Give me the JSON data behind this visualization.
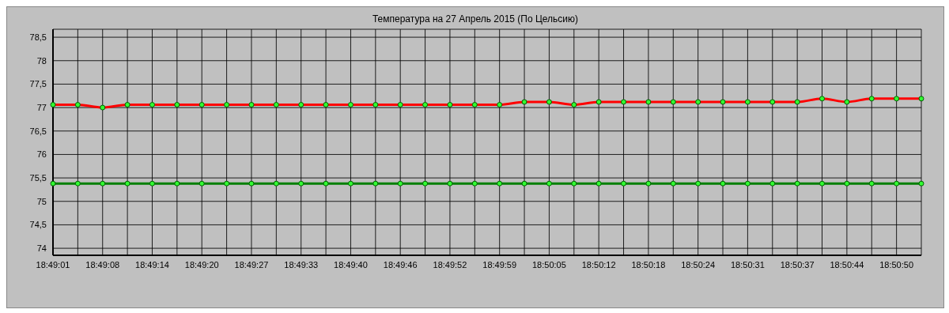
{
  "chart_data": {
    "type": "line",
    "title": "Температура на 27 Апрель 2015 (По Цельсию)",
    "categories": [
      "18:49:01",
      null,
      "18:49:08",
      null,
      "18:49:14",
      null,
      "18:49:20",
      null,
      "18:49:27",
      null,
      "18:49:33",
      null,
      "18:49:40",
      null,
      "18:49:46",
      null,
      "18:49:52",
      null,
      "18:49:59",
      null,
      "18:50:05",
      null,
      "18:50:12",
      null,
      "18:50:18",
      null,
      "18:50:24",
      null,
      "18:50:31",
      null,
      "18:50:37",
      null,
      "18:50:44",
      null,
      "18:50:50",
      null
    ],
    "series": [
      {
        "color": "#008000",
        "values": [
          75.38,
          75.38,
          75.38,
          75.38,
          75.38,
          75.38,
          75.38,
          75.38,
          75.38,
          75.38,
          75.38,
          75.38,
          75.38,
          75.38,
          75.38,
          75.38,
          75.38,
          75.38,
          75.38,
          75.38,
          75.38,
          75.38,
          75.38,
          75.38,
          75.38,
          75.38,
          75.38,
          75.38,
          75.38,
          75.38,
          75.38,
          75.38,
          75.38,
          75.38,
          75.38,
          75.38
        ]
      },
      {
        "color": "#ff0000",
        "values": [
          77.06,
          77.06,
          77.0,
          77.06,
          77.06,
          77.06,
          77.06,
          77.06,
          77.06,
          77.06,
          77.06,
          77.06,
          77.06,
          77.06,
          77.06,
          77.06,
          77.06,
          77.06,
          77.06,
          77.12,
          77.12,
          77.06,
          77.12,
          77.12,
          77.12,
          77.12,
          77.12,
          77.12,
          77.12,
          77.12,
          77.12,
          77.19,
          77.12,
          77.19,
          77.19,
          77.19
        ]
      }
    ],
    "ylim": [
      73.85,
      78.67
    ],
    "yticks": [
      {
        "value": 74,
        "label": "74"
      },
      {
        "value": 74.5,
        "label": "74,5"
      },
      {
        "value": 75,
        "label": "75"
      },
      {
        "value": 75.5,
        "label": "75,5"
      },
      {
        "value": 76,
        "label": "76"
      },
      {
        "value": 76.5,
        "label": "76,5"
      },
      {
        "value": 77,
        "label": "77"
      },
      {
        "value": 77.5,
        "label": "77,5"
      },
      {
        "value": 78,
        "label": "78"
      },
      {
        "value": 78.5,
        "label": "78,5"
      }
    ],
    "grid": true,
    "marker": "circle",
    "line_style": "solid"
  }
}
